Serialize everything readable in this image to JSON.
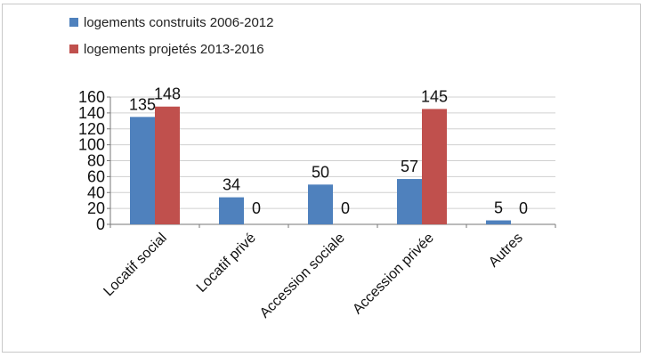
{
  "chart_data": {
    "type": "bar",
    "categories": [
      "Locatif social",
      "Locatif privé",
      "Accession sociale",
      "Accession privée",
      "Autres"
    ],
    "series": [
      {
        "name": "logements construits 2006-2012",
        "values": [
          135,
          34,
          50,
          57,
          5
        ],
        "color": "#4f81bd"
      },
      {
        "name": "logements projetés 2013-2016",
        "values": [
          148,
          0,
          0,
          145,
          0
        ],
        "color": "#c0504d"
      }
    ],
    "data_labels": [
      [
        "135",
        "34",
        "50",
        "57",
        "5"
      ],
      [
        "148",
        "0",
        "0",
        "145",
        "0"
      ]
    ],
    "ylim": [
      0,
      160
    ],
    "yticks": [
      "0",
      "20",
      "40",
      "60",
      "80",
      "100",
      "120",
      "140",
      "160"
    ],
    "title": "",
    "xlabel": "",
    "ylabel": "",
    "grid": true,
    "legend_position": "top-left"
  }
}
